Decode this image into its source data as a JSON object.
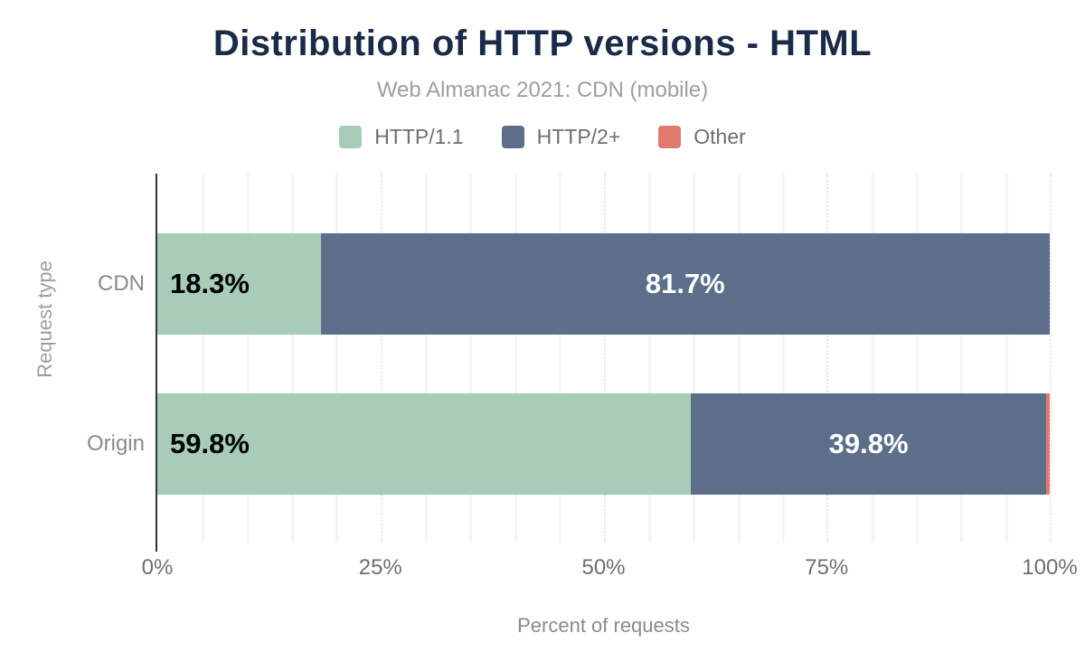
{
  "chart_data": {
    "type": "bar",
    "orientation": "horizontal",
    "stacked": true,
    "title": "Distribution of HTTP versions - HTML",
    "subtitle": "Web Almanac 2021: CDN (mobile)",
    "categories": [
      "CDN",
      "Origin"
    ],
    "series": [
      {
        "name": "HTTP/1.1",
        "color": "#a7ccb8",
        "values": [
          18.3,
          59.8
        ],
        "labels": [
          "18.3%",
          "59.8%"
        ]
      },
      {
        "name": "HTTP/2+",
        "color": "#5c6e8a",
        "values": [
          81.7,
          39.8
        ],
        "labels": [
          "81.7%",
          "39.8%"
        ]
      },
      {
        "name": "Other",
        "color": "#e2796e",
        "values": [
          0.0,
          0.4
        ],
        "labels": [
          "",
          ""
        ]
      }
    ],
    "xlabel": "Percent of requests",
    "ylabel": "Request type",
    "x_ticks": [
      "0%",
      "25%",
      "50%",
      "75%",
      "100%"
    ],
    "x_tick_values": [
      0,
      25,
      50,
      75,
      100
    ],
    "xlim": [
      0,
      100
    ],
    "grid": "vertical",
    "minor_grid_step": 5,
    "legend_position": "top",
    "label_colors": {
      "inside_first": "#000000",
      "inside_rest": "#ffffff"
    },
    "title_color": "#1b2a47",
    "axis_line_color": "#333333"
  }
}
